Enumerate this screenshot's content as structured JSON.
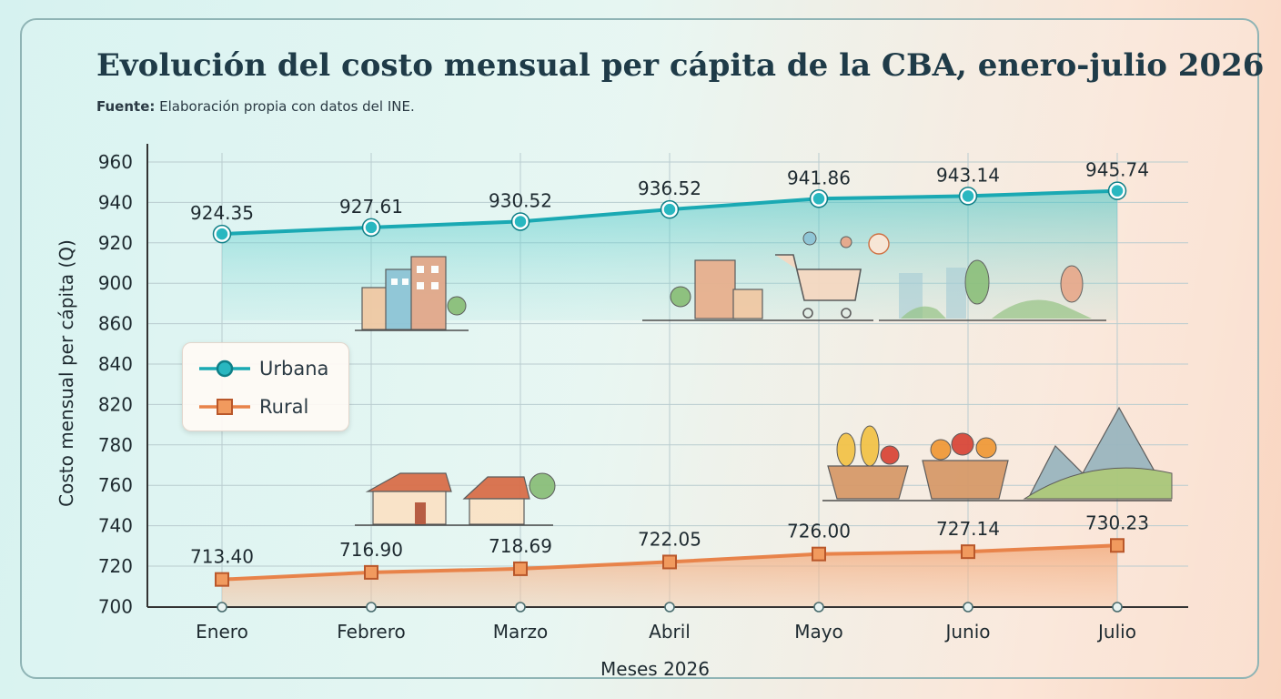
{
  "title": "Evolución del costo mensual per cápita de la CBA, enero-julio 2026",
  "source": {
    "label": "Fuente:",
    "text": "Elaboración propia con datos del INE."
  },
  "colors": {
    "urbana": "#1aa9b3",
    "rural": "#e8834a",
    "grid": "#b9cccf",
    "axis": "#333333"
  },
  "chart_data": {
    "type": "line",
    "title": "Evolución del costo mensual per cápita de la CBA, enero-julio 2026",
    "xlabel": "Meses 2026",
    "ylabel": "Costo mensual per cápita (Q)",
    "categories": [
      "Enero",
      "Febrero",
      "Marzo",
      "Abril",
      "Mayo",
      "Junio",
      "Julio"
    ],
    "yticks": [
      700,
      720,
      740,
      760,
      780,
      820,
      840,
      860,
      900,
      920,
      940,
      960
    ],
    "series": [
      {
        "name": "Urbana",
        "marker": "circle",
        "values": [
          924.35,
          927.61,
          930.52,
          936.52,
          941.86,
          943.14,
          945.74
        ],
        "labels": [
          "924.35",
          "927.61",
          "930.52",
          "936.52",
          "941.86",
          "943.14",
          "945.74"
        ]
      },
      {
        "name": "Rural",
        "marker": "square",
        "values": [
          713.4,
          716.9,
          718.69,
          722.05,
          726.0,
          727.14,
          730.23
        ],
        "labels": [
          "713.40",
          "716.90",
          "718.69",
          "722.05",
          "726.00",
          "727.14",
          "730.23"
        ]
      }
    ],
    "grid": true,
    "legend": "left"
  },
  "legend": {
    "urbana": "Urbana",
    "rural": "Rural"
  }
}
